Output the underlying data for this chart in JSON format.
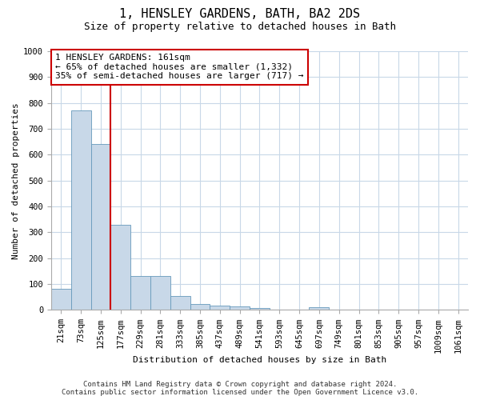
{
  "title": "1, HENSLEY GARDENS, BATH, BA2 2DS",
  "subtitle": "Size of property relative to detached houses in Bath",
  "xlabel": "Distribution of detached houses by size in Bath",
  "ylabel": "Number of detached properties",
  "bar_labels": [
    "21sqm",
    "73sqm",
    "125sqm",
    "177sqm",
    "229sqm",
    "281sqm",
    "333sqm",
    "385sqm",
    "437sqm",
    "489sqm",
    "541sqm",
    "593sqm",
    "645sqm",
    "697sqm",
    "749sqm",
    "801sqm",
    "853sqm",
    "905sqm",
    "957sqm",
    "1009sqm",
    "1061sqm"
  ],
  "bar_values": [
    82,
    770,
    640,
    330,
    130,
    130,
    55,
    22,
    18,
    12,
    8,
    0,
    0,
    10,
    0,
    0,
    0,
    0,
    0,
    0,
    0
  ],
  "bar_color": "#c8d8e8",
  "bar_edge_color": "#6699bb",
  "vline_x": 2.5,
  "vline_color": "#cc0000",
  "ylim": [
    0,
    1000
  ],
  "yticks": [
    0,
    100,
    200,
    300,
    400,
    500,
    600,
    700,
    800,
    900,
    1000
  ],
  "annotation_line1": "1 HENSLEY GARDENS: 161sqm",
  "annotation_line2": "← 65% of detached houses are smaller (1,332)",
  "annotation_line3": "35% of semi-detached houses are larger (717) →",
  "footer_line1": "Contains HM Land Registry data © Crown copyright and database right 2024.",
  "footer_line2": "Contains public sector information licensed under the Open Government Licence v3.0.",
  "background_color": "#ffffff",
  "grid_color": "#c8d8e8",
  "title_fontsize": 11,
  "subtitle_fontsize": 9,
  "axis_label_fontsize": 8,
  "tick_fontsize": 7.5,
  "annotation_fontsize": 8,
  "footer_fontsize": 6.5
}
